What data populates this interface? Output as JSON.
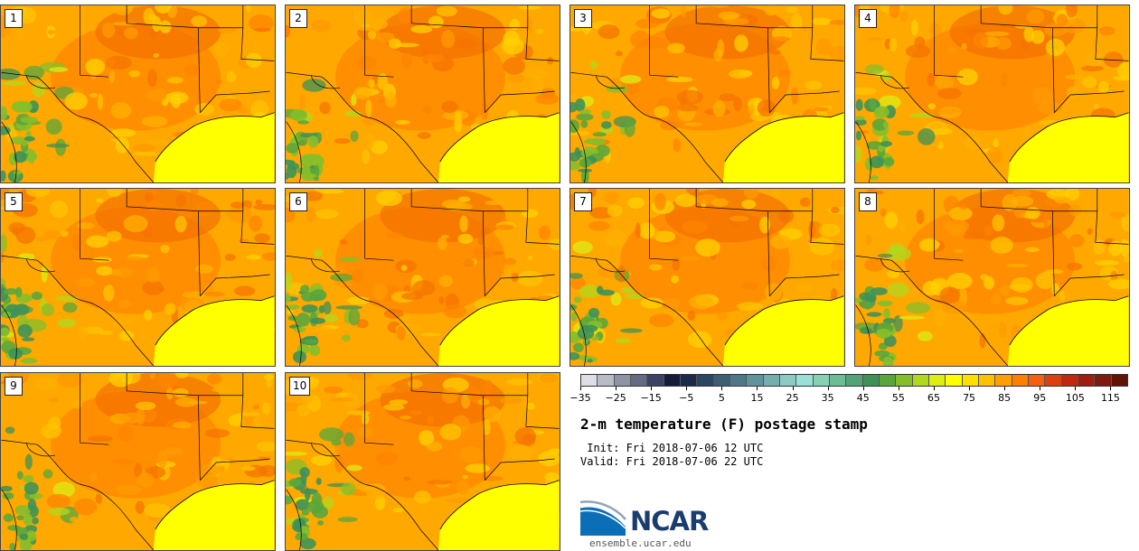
{
  "stamps": [
    {
      "label": "1"
    },
    {
      "label": "2"
    },
    {
      "label": "3"
    },
    {
      "label": "4"
    },
    {
      "label": "5"
    },
    {
      "label": "6"
    },
    {
      "label": "7"
    },
    {
      "label": "8"
    },
    {
      "label": "9"
    },
    {
      "label": "10"
    }
  ],
  "colorbar": {
    "colors": [
      "#dedee6",
      "#b8bcc8",
      "#8e94a6",
      "#646c84",
      "#3a4462",
      "#141c3a",
      "#1a2a48",
      "#2c4660",
      "#3e5e74",
      "#4e7888",
      "#62929c",
      "#76aeb0",
      "#8ccac4",
      "#9ae0d4",
      "#86d0b6",
      "#6cbc96",
      "#52a478",
      "#3e9258",
      "#5aa63c",
      "#86be2a",
      "#b2d81e",
      "#dcee14",
      "#ffff00",
      "#ffe000",
      "#ffc000",
      "#ffa000",
      "#ff8000",
      "#f46010",
      "#dc4010",
      "#c02810",
      "#a01e10",
      "#7e1a10",
      "#601408"
    ],
    "ticks": [
      "−35",
      "−25",
      "−15",
      "−5",
      "5",
      "15",
      "25",
      "35",
      "45",
      "55",
      "65",
      "75",
      "85",
      "95",
      "105",
      "115"
    ]
  },
  "title": "2-m temperature (F) postage stamp",
  "init": " Init: Fri 2018-07-06 12 UTC",
  "valid": "Valid: Fri 2018-07-06 22 UTC",
  "logo_text": "NCAR",
  "url": "ensemble.ucar.edu"
}
